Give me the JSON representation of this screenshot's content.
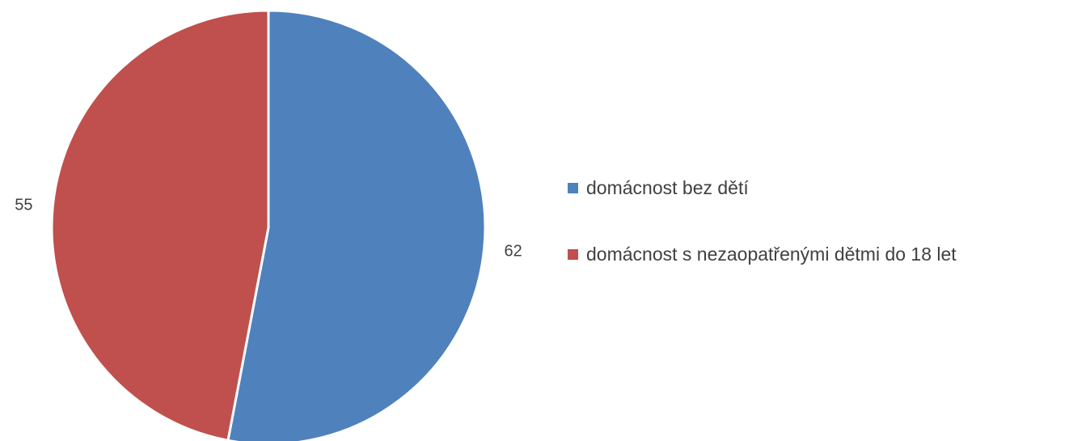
{
  "chart_data": {
    "type": "pie",
    "title": "",
    "slices": [
      {
        "label": "domácnost bez dětí",
        "value": 62,
        "color": "#4F81BD"
      },
      {
        "label": "domácnost s nezaopatřenými dětmi do 18 let",
        "value": 55,
        "color": "#C0504D"
      }
    ],
    "legend_position": "right",
    "start_angle": "12 o'clock",
    "direction": "clockwise"
  }
}
